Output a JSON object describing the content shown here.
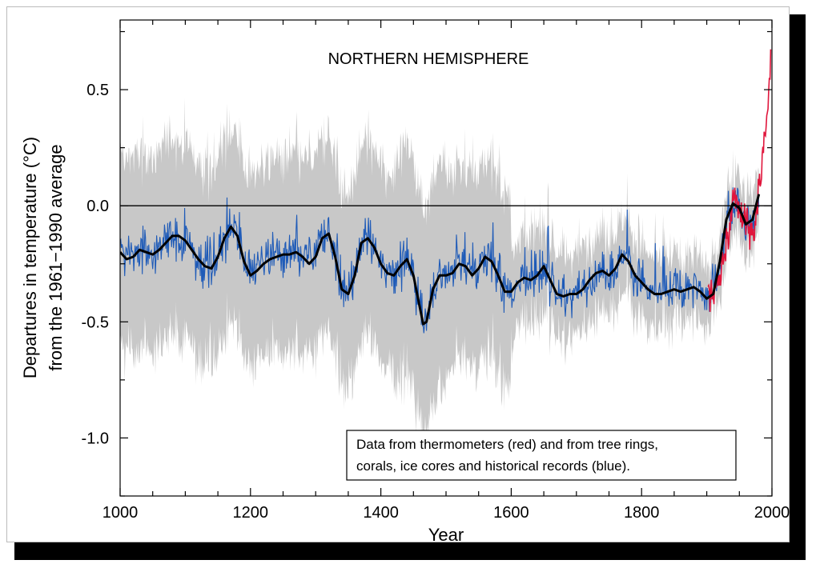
{
  "chart_data": {
    "type": "line",
    "title": "NORTHERN HEMISPHERE",
    "xlabel": "Year",
    "ylabel_line1": "Departures in temperature (°C)",
    "ylabel_line2": "from the 1961−1990 average",
    "xlim": [
      1000,
      2000
    ],
    "ylim": [
      -1.25,
      0.8
    ],
    "xticks": [
      1000,
      1200,
      1400,
      1600,
      1800,
      2000
    ],
    "yticks": [
      0.5,
      0.0,
      -0.5,
      -1.0
    ],
    "ytick_labels": [
      "0.5",
      "0.0",
      "-0.5",
      "-1.0"
    ],
    "zero_line": 0.0,
    "annotation_line1": "Data from thermometers (red) and from tree rings,",
    "annotation_line2": "corals, ice cores and historical records (blue).",
    "colors": {
      "uncertainty": "#c8c8c8",
      "proxy": "#1f5bb8",
      "thermometer": "#e0163c",
      "smoothed": "#000000"
    },
    "series": [
      {
        "color": "#000000",
        "x": [
          1000,
          1010,
          1020,
          1030,
          1040,
          1050,
          1060,
          1070,
          1080,
          1090,
          1100,
          1110,
          1120,
          1130,
          1140,
          1150,
          1160,
          1170,
          1180,
          1190,
          1200,
          1210,
          1220,
          1230,
          1240,
          1250,
          1260,
          1270,
          1280,
          1290,
          1300,
          1310,
          1320,
          1330,
          1340,
          1350,
          1360,
          1370,
          1380,
          1390,
          1400,
          1410,
          1420,
          1430,
          1440,
          1450,
          1460,
          1465,
          1470,
          1480,
          1490,
          1500,
          1510,
          1520,
          1530,
          1540,
          1550,
          1560,
          1570,
          1580,
          1590,
          1600,
          1610,
          1620,
          1630,
          1640,
          1650,
          1660,
          1670,
          1680,
          1690,
          1700,
          1710,
          1720,
          1730,
          1740,
          1750,
          1760,
          1770,
          1780,
          1790,
          1800,
          1810,
          1820,
          1830,
          1840,
          1850,
          1860,
          1870,
          1880,
          1890,
          1900,
          1910,
          1920,
          1930,
          1940,
          1950,
          1960,
          1970,
          1980
        ],
        "values": [
          -0.2,
          -0.23,
          -0.22,
          -0.19,
          -0.2,
          -0.21,
          -0.19,
          -0.16,
          -0.13,
          -0.13,
          -0.15,
          -0.19,
          -0.23,
          -0.26,
          -0.27,
          -0.22,
          -0.14,
          -0.09,
          -0.13,
          -0.24,
          -0.3,
          -0.28,
          -0.25,
          -0.23,
          -0.22,
          -0.21,
          -0.21,
          -0.2,
          -0.22,
          -0.25,
          -0.22,
          -0.14,
          -0.12,
          -0.22,
          -0.36,
          -0.38,
          -0.3,
          -0.16,
          -0.14,
          -0.18,
          -0.25,
          -0.29,
          -0.3,
          -0.26,
          -0.23,
          -0.3,
          -0.44,
          -0.51,
          -0.5,
          -0.36,
          -0.3,
          -0.3,
          -0.29,
          -0.25,
          -0.26,
          -0.3,
          -0.27,
          -0.22,
          -0.24,
          -0.3,
          -0.37,
          -0.37,
          -0.33,
          -0.31,
          -0.32,
          -0.3,
          -0.26,
          -0.32,
          -0.38,
          -0.39,
          -0.38,
          -0.38,
          -0.36,
          -0.32,
          -0.29,
          -0.28,
          -0.3,
          -0.27,
          -0.21,
          -0.24,
          -0.3,
          -0.33,
          -0.36,
          -0.38,
          -0.38,
          -0.37,
          -0.36,
          -0.37,
          -0.36,
          -0.35,
          -0.37,
          -0.4,
          -0.38,
          -0.24,
          -0.06,
          0.01,
          -0.01,
          -0.08,
          -0.06,
          0.05
        ]
      },
      {
        "color": "#e0163c",
        "x": [
          1902,
          1910,
          1920,
          1925,
          1930,
          1935,
          1940,
          1945,
          1950,
          1955,
          1960,
          1965,
          1970,
          1975,
          1980,
          1985,
          1990,
          1995,
          1998
        ],
        "values": [
          -0.38,
          -0.4,
          -0.3,
          -0.25,
          -0.15,
          -0.1,
          0.0,
          0.05,
          -0.05,
          -0.02,
          -0.05,
          -0.1,
          -0.12,
          -0.05,
          0.1,
          0.2,
          0.3,
          0.45,
          0.62
        ]
      }
    ]
  }
}
